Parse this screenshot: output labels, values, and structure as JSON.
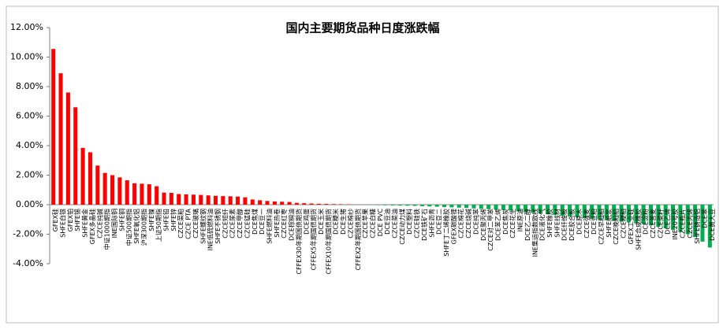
{
  "chart_data": {
    "type": "bar",
    "title": "国内主要期货品种日度涨跌幅",
    "categories": [
      "GFEX硅",
      "SHFE白银",
      "GFEX铂",
      "SHFE锡",
      "SHFE黄金",
      "GFEX多晶硅",
      "CZCE纯碱",
      "中证1000期指",
      "INE国际铜",
      "SHFE铜",
      "中证500期指",
      "SHFE氧化铝",
      "沪深300期指",
      "SHFE镍",
      "上证50期指",
      "SHFE铅",
      "SHFE锌",
      "CZCE菜粕",
      "CZCE PTA",
      "CZCE玻璃",
      "SHFE螺纹钢",
      "INE低硫燃料油",
      "SHFE不锈钢",
      "CZCE短纤",
      "CZCE尿素",
      "CZCE甲醇",
      "CZCE锰硅",
      "DCE焦煤",
      "DCE豆一",
      "SHFE燃料油",
      "SHFE热卷",
      "CZCE红枣",
      "DCE棕榈油",
      "CFFEX30年期国债期货",
      "DCE鸡蛋",
      "CFFEX5年期国债期货",
      "DCE玉米",
      "CFFEX10年期国债期货",
      "DCE粳米",
      "DCE生猪",
      "CZCE棉纱",
      "CFFEX2年期国债期货",
      "CZCE苹果",
      "CZCE白糖",
      "DCE PVC",
      "DCE豆油",
      "CZCE菜油",
      "CZCE动力煤",
      "DCE塑料",
      "CZCE硅铁",
      "DCE铁矿石",
      "SHFE沥青",
      "DCE豆二",
      "SHFE丁二烯橡胶",
      "GFEX碳酸锂",
      "CZCE棉花",
      "CZCE烧碱",
      "DCE纯苯",
      "DCE聚丙烯",
      "CZCE对二甲苯",
      "DCE苯乙烯",
      "DCE焦炭",
      "CZCE花生",
      "INE原油",
      "DCE乙二醇",
      "INE集运指数欧线",
      "DCE液化气",
      "SHFE橡胶",
      "SHFE线材",
      "DCE纤维板",
      "DCE胶合板",
      "DCE原木",
      "CZCE强麦",
      "DCE豆粕",
      "CZCE早籼稻",
      "SHFE纸浆",
      "CZCE晚籼稻",
      "CZCE粳稻",
      "GFEX工业硅",
      "SHFE合成橡胶",
      "DCE淀粉",
      "CZCE普麦",
      "CZCE菜籽",
      "DCE乙烯",
      "INE20号胶",
      "CZCE瓶片",
      "CZCE丙烯",
      "SHFE铸造铝",
      "DCE苯",
      "DCE黄大豆"
    ],
    "values": [
      10.55,
      8.9,
      7.6,
      6.6,
      3.85,
      3.55,
      2.65,
      2.15,
      2.0,
      1.85,
      1.65,
      1.45,
      1.42,
      1.38,
      1.25,
      0.82,
      0.8,
      0.72,
      0.7,
      0.68,
      0.66,
      0.63,
      0.6,
      0.58,
      0.57,
      0.55,
      0.5,
      0.35,
      0.3,
      0.25,
      0.22,
      0.2,
      0.18,
      0.12,
      0.1,
      0.08,
      0.06,
      0.05,
      0.04,
      0.03,
      0.02,
      0.01,
      0,
      -0.02,
      -0.03,
      -0.04,
      -0.05,
      -0.06,
      -0.07,
      -0.08,
      -0.1,
      -0.12,
      -0.14,
      -0.16,
      -0.18,
      -0.2,
      -0.22,
      -0.25,
      -0.28,
      -0.3,
      -0.33,
      -0.36,
      -0.4,
      -0.45,
      -0.5,
      -0.55,
      -0.6,
      -0.65,
      -0.7,
      -0.75,
      -0.8,
      -0.85,
      -0.9,
      -0.95,
      -1.0,
      -1.05,
      -1.1,
      -1.15,
      -1.2,
      -1.25,
      -1.3,
      -1.4,
      -1.5,
      -1.6,
      -1.7,
      -1.85,
      -2.0,
      -2.2,
      -2.5,
      -2.9
    ],
    "positive_color": "#ff0000",
    "negative_color": "#00b050",
    "ylim": [
      -4,
      12
    ],
    "yticks": [
      {
        "value": -4,
        "label": "-4.00%"
      },
      {
        "value": -2,
        "label": "-2.00%"
      },
      {
        "value": 0,
        "label": "0.00%"
      },
      {
        "value": 2,
        "label": "2.00%"
      },
      {
        "value": 4,
        "label": "4.00%"
      },
      {
        "value": 6,
        "label": "6.00%"
      },
      {
        "value": 8,
        "label": "8.00%"
      },
      {
        "value": 10,
        "label": "10.00%"
      },
      {
        "value": 12,
        "label": "12.00%"
      }
    ]
  }
}
